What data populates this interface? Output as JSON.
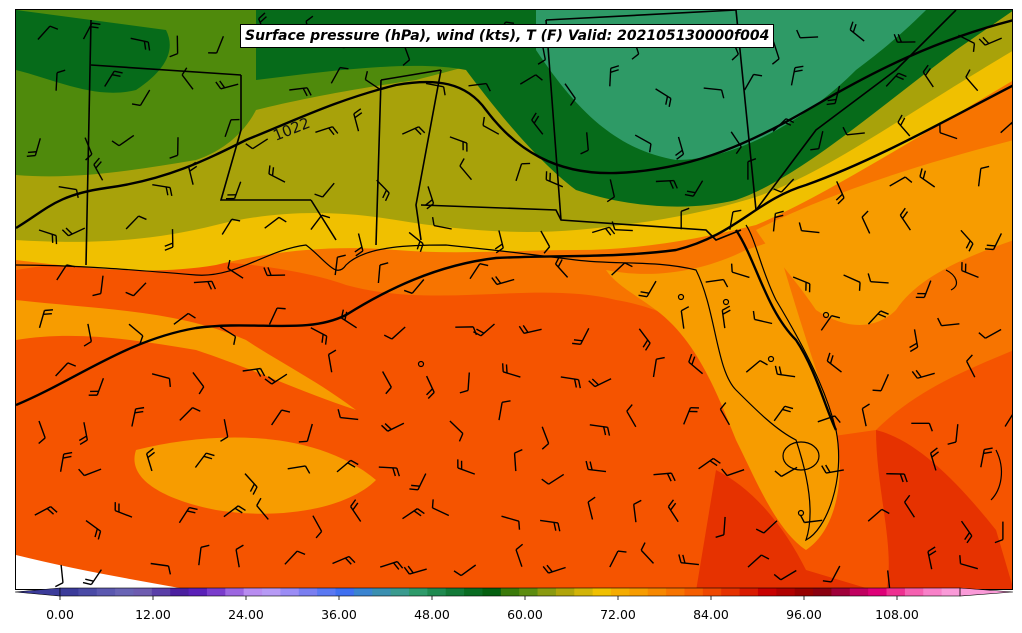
{
  "title": "Surface pressure (hPa), wind (kts), T (F) Valid: 202105130000f004",
  "isobar_labels": [
    "1022"
  ],
  "colorbar": {
    "ticks": [
      "0.00",
      "12.00",
      "24.00",
      "36.00",
      "48.00",
      "60.00",
      "72.00",
      "84.00",
      "96.00",
      "108.00"
    ],
    "colors": [
      "#3b3b9a",
      "#4a4aa6",
      "#5b58b0",
      "#6964b5",
      "#6e5cb0",
      "#5a3fa8",
      "#4b1fa0",
      "#5a20b8",
      "#7a3ccc",
      "#9c66e0",
      "#b88cf0",
      "#b79af5",
      "#9b8cf5",
      "#7a7ef0",
      "#5a78f2",
      "#3f6ff0",
      "#3a84d0",
      "#3a8fb0",
      "#3a9a8e",
      "#2e9a6a",
      "#1f8a50",
      "#137a38",
      "#096c22",
      "#046010",
      "#3a7a0a",
      "#5c8c10",
      "#8a9a10",
      "#b0a40a",
      "#d2b408",
      "#f0c000",
      "#f5ac00",
      "#f79c00",
      "#f78800",
      "#f77400",
      "#f55e00",
      "#ef4800",
      "#e63200",
      "#d91a00",
      "#c80000",
      "#b00000",
      "#980000",
      "#8a0010",
      "#a0003a",
      "#c00060",
      "#de0078",
      "#ee3090",
      "#f560b0",
      "#f880c8",
      "#fa9ad8"
    ]
  },
  "colors": {
    "gulf_warm": "#f55400",
    "gulf_mid": "#f77400",
    "coast": "#f79c00",
    "yellow": "#f0c000",
    "olive": "#a8a20a",
    "green_light": "#4f8a0c",
    "green_dark": "#066b1a",
    "teal": "#2e9a66",
    "hot": "#e63200"
  }
}
